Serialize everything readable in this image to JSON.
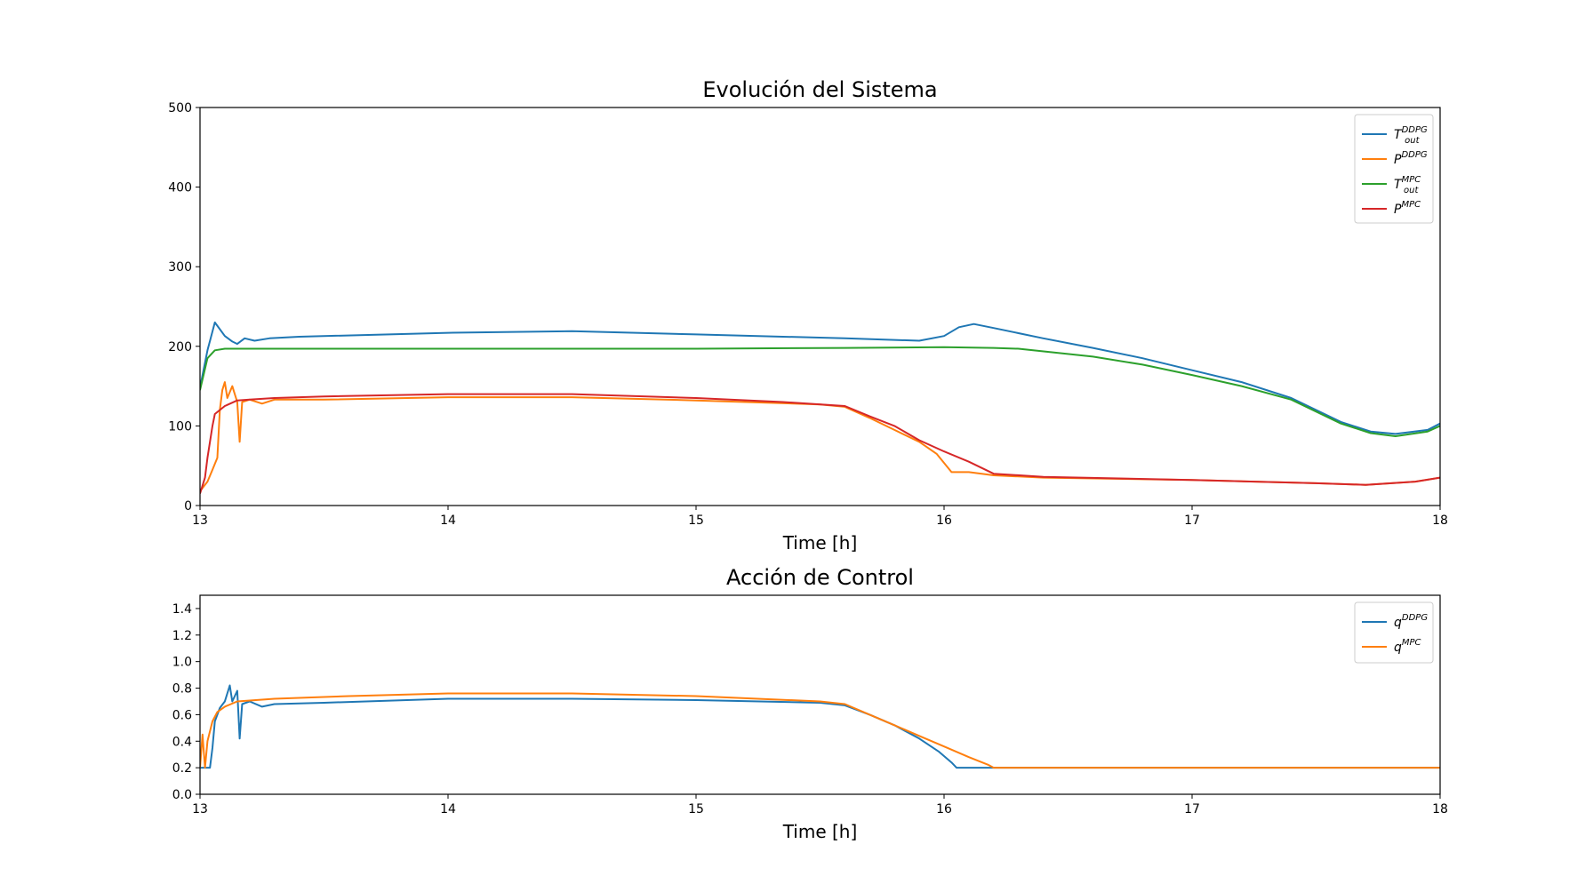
{
  "chart_data": [
    {
      "type": "line",
      "title": "Evolución del Sistema",
      "xlabel": "Time [h]",
      "ylabel": "",
      "xlim": [
        13,
        18
      ],
      "ylim": [
        0,
        500
      ],
      "xticks": [
        "13",
        "14",
        "15",
        "16",
        "17",
        "18"
      ],
      "yticks": [
        "0",
        "100",
        "200",
        "300",
        "400",
        "500"
      ],
      "grid": false,
      "legend_position": "top-right",
      "series": [
        {
          "name": "T",
          "name_sup": "DDPG",
          "name_sub": "out",
          "color": "#1f77b4",
          "points": [
            [
              13.0,
              148
            ],
            [
              13.03,
              195
            ],
            [
              13.06,
              230
            ],
            [
              13.1,
              213
            ],
            [
              13.13,
              206
            ],
            [
              13.15,
              203
            ],
            [
              13.18,
              210
            ],
            [
              13.22,
              207
            ],
            [
              13.28,
              210
            ],
            [
              13.4,
              212
            ],
            [
              14.0,
              217
            ],
            [
              14.5,
              219
            ],
            [
              15.0,
              215
            ],
            [
              15.6,
              210
            ],
            [
              15.9,
              207
            ],
            [
              16.0,
              213
            ],
            [
              16.06,
              224
            ],
            [
              16.12,
              228
            ],
            [
              16.2,
              223
            ],
            [
              16.4,
              210
            ],
            [
              16.6,
              198
            ],
            [
              16.8,
              185
            ],
            [
              17.0,
              170
            ],
            [
              17.2,
              155
            ],
            [
              17.4,
              135
            ],
            [
              17.6,
              105
            ],
            [
              17.72,
              93
            ],
            [
              17.82,
              90
            ],
            [
              17.95,
              95
            ],
            [
              18.0,
              103
            ]
          ]
        },
        {
          "name": "P",
          "name_sup": "DDPG",
          "name_sub": "",
          "color": "#ff7f0e",
          "points": [
            [
              13.0,
              18
            ],
            [
              13.03,
              30
            ],
            [
              13.05,
              45
            ],
            [
              13.07,
              60
            ],
            [
              13.08,
              120
            ],
            [
              13.09,
              145
            ],
            [
              13.1,
              155
            ],
            [
              13.11,
              135
            ],
            [
              13.13,
              150
            ],
            [
              13.14,
              140
            ],
            [
              13.15,
              130
            ],
            [
              13.16,
              80
            ],
            [
              13.17,
              130
            ],
            [
              13.2,
              133
            ],
            [
              13.25,
              128
            ],
            [
              13.3,
              133
            ],
            [
              13.5,
              133
            ],
            [
              14.0,
              136
            ],
            [
              14.5,
              136
            ],
            [
              15.0,
              132
            ],
            [
              15.5,
              127
            ],
            [
              15.6,
              124
            ],
            [
              15.7,
              110
            ],
            [
              15.8,
              95
            ],
            [
              15.9,
              80
            ],
            [
              15.97,
              65
            ],
            [
              16.03,
              42
            ],
            [
              16.1,
              42
            ],
            [
              16.2,
              38
            ],
            [
              16.4,
              35
            ],
            [
              17.0,
              32
            ],
            [
              17.5,
              28
            ],
            [
              17.7,
              26
            ],
            [
              17.9,
              30
            ],
            [
              18.0,
              35
            ]
          ]
        },
        {
          "name": "T",
          "name_sup": "MPC",
          "name_sub": "out",
          "color": "#2ca02c",
          "points": [
            [
              13.0,
              145
            ],
            [
              13.03,
              185
            ],
            [
              13.06,
              195
            ],
            [
              13.1,
              197
            ],
            [
              13.3,
              197
            ],
            [
              14.0,
              197
            ],
            [
              15.0,
              197
            ],
            [
              15.6,
              198
            ],
            [
              16.0,
              199
            ],
            [
              16.2,
              198
            ],
            [
              16.3,
              197
            ],
            [
              16.6,
              187
            ],
            [
              16.8,
              177
            ],
            [
              17.0,
              164
            ],
            [
              17.2,
              150
            ],
            [
              17.4,
              133
            ],
            [
              17.6,
              103
            ],
            [
              17.72,
              91
            ],
            [
              17.82,
              87
            ],
            [
              17.95,
              93
            ],
            [
              18.0,
              100
            ]
          ]
        },
        {
          "name": "P",
          "name_sup": "MPC",
          "name_sub": "",
          "color": "#d62728",
          "points": [
            [
              13.0,
              15
            ],
            [
              13.02,
              35
            ],
            [
              13.03,
              60
            ],
            [
              13.04,
              80
            ],
            [
              13.05,
              100
            ],
            [
              13.06,
              115
            ],
            [
              13.08,
              120
            ],
            [
              13.1,
              125
            ],
            [
              13.15,
              132
            ],
            [
              13.2,
              133
            ],
            [
              13.3,
              135
            ],
            [
              13.5,
              137
            ],
            [
              14.0,
              140
            ],
            [
              14.5,
              140
            ],
            [
              15.0,
              135
            ],
            [
              15.35,
              130
            ],
            [
              15.6,
              125
            ],
            [
              15.7,
              112
            ],
            [
              15.8,
              100
            ],
            [
              15.9,
              82
            ],
            [
              16.0,
              68
            ],
            [
              16.1,
              55
            ],
            [
              16.2,
              40
            ],
            [
              16.4,
              36
            ],
            [
              17.0,
              32
            ],
            [
              17.5,
              28
            ],
            [
              17.7,
              26
            ],
            [
              17.9,
              30
            ],
            [
              18.0,
              35
            ]
          ]
        }
      ]
    },
    {
      "type": "line",
      "title": "Acción de Control",
      "xlabel": "Time [h]",
      "ylabel": "",
      "xlim": [
        13,
        18
      ],
      "ylim": [
        0.0,
        1.5
      ],
      "xticks": [
        "13",
        "14",
        "15",
        "16",
        "17",
        "18"
      ],
      "yticks": [
        "0.0",
        "0.2",
        "0.4",
        "0.6",
        "0.8",
        "1.0",
        "1.2",
        "1.4"
      ],
      "grid": false,
      "legend_position": "top-right",
      "series": [
        {
          "name": "q",
          "name_sup": "DDPG",
          "name_sub": "",
          "color": "#1f77b4",
          "points": [
            [
              13.0,
              0.2
            ],
            [
              13.04,
              0.2
            ],
            [
              13.05,
              0.35
            ],
            [
              13.06,
              0.55
            ],
            [
              13.08,
              0.65
            ],
            [
              13.1,
              0.7
            ],
            [
              13.12,
              0.82
            ],
            [
              13.13,
              0.7
            ],
            [
              13.15,
              0.78
            ],
            [
              13.16,
              0.42
            ],
            [
              13.17,
              0.68
            ],
            [
              13.2,
              0.7
            ],
            [
              13.25,
              0.66
            ],
            [
              13.3,
              0.68
            ],
            [
              13.5,
              0.69
            ],
            [
              14.0,
              0.72
            ],
            [
              14.5,
              0.72
            ],
            [
              15.0,
              0.71
            ],
            [
              15.5,
              0.69
            ],
            [
              15.6,
              0.67
            ],
            [
              15.7,
              0.6
            ],
            [
              15.8,
              0.52
            ],
            [
              15.9,
              0.42
            ],
            [
              15.98,
              0.32
            ],
            [
              16.03,
              0.24
            ],
            [
              16.05,
              0.2
            ],
            [
              16.5,
              0.2
            ],
            [
              17.0,
              0.2
            ],
            [
              18.0,
              0.2
            ]
          ]
        },
        {
          "name": "q",
          "name_sup": "MPC",
          "name_sub": "",
          "color": "#ff7f0e",
          "points": [
            [
              13.0,
              0.2
            ],
            [
              13.01,
              0.45
            ],
            [
              13.02,
              0.2
            ],
            [
              13.03,
              0.4
            ],
            [
              13.05,
              0.55
            ],
            [
              13.07,
              0.62
            ],
            [
              13.1,
              0.66
            ],
            [
              13.15,
              0.7
            ],
            [
              13.3,
              0.72
            ],
            [
              13.6,
              0.74
            ],
            [
              14.0,
              0.76
            ],
            [
              14.5,
              0.76
            ],
            [
              15.0,
              0.74
            ],
            [
              15.5,
              0.7
            ],
            [
              15.6,
              0.68
            ],
            [
              15.7,
              0.6
            ],
            [
              15.8,
              0.52
            ],
            [
              15.9,
              0.44
            ],
            [
              16.0,
              0.36
            ],
            [
              16.1,
              0.28
            ],
            [
              16.18,
              0.22
            ],
            [
              16.2,
              0.2
            ],
            [
              16.5,
              0.2
            ],
            [
              17.0,
              0.2
            ],
            [
              18.0,
              0.2
            ]
          ]
        }
      ]
    }
  ]
}
